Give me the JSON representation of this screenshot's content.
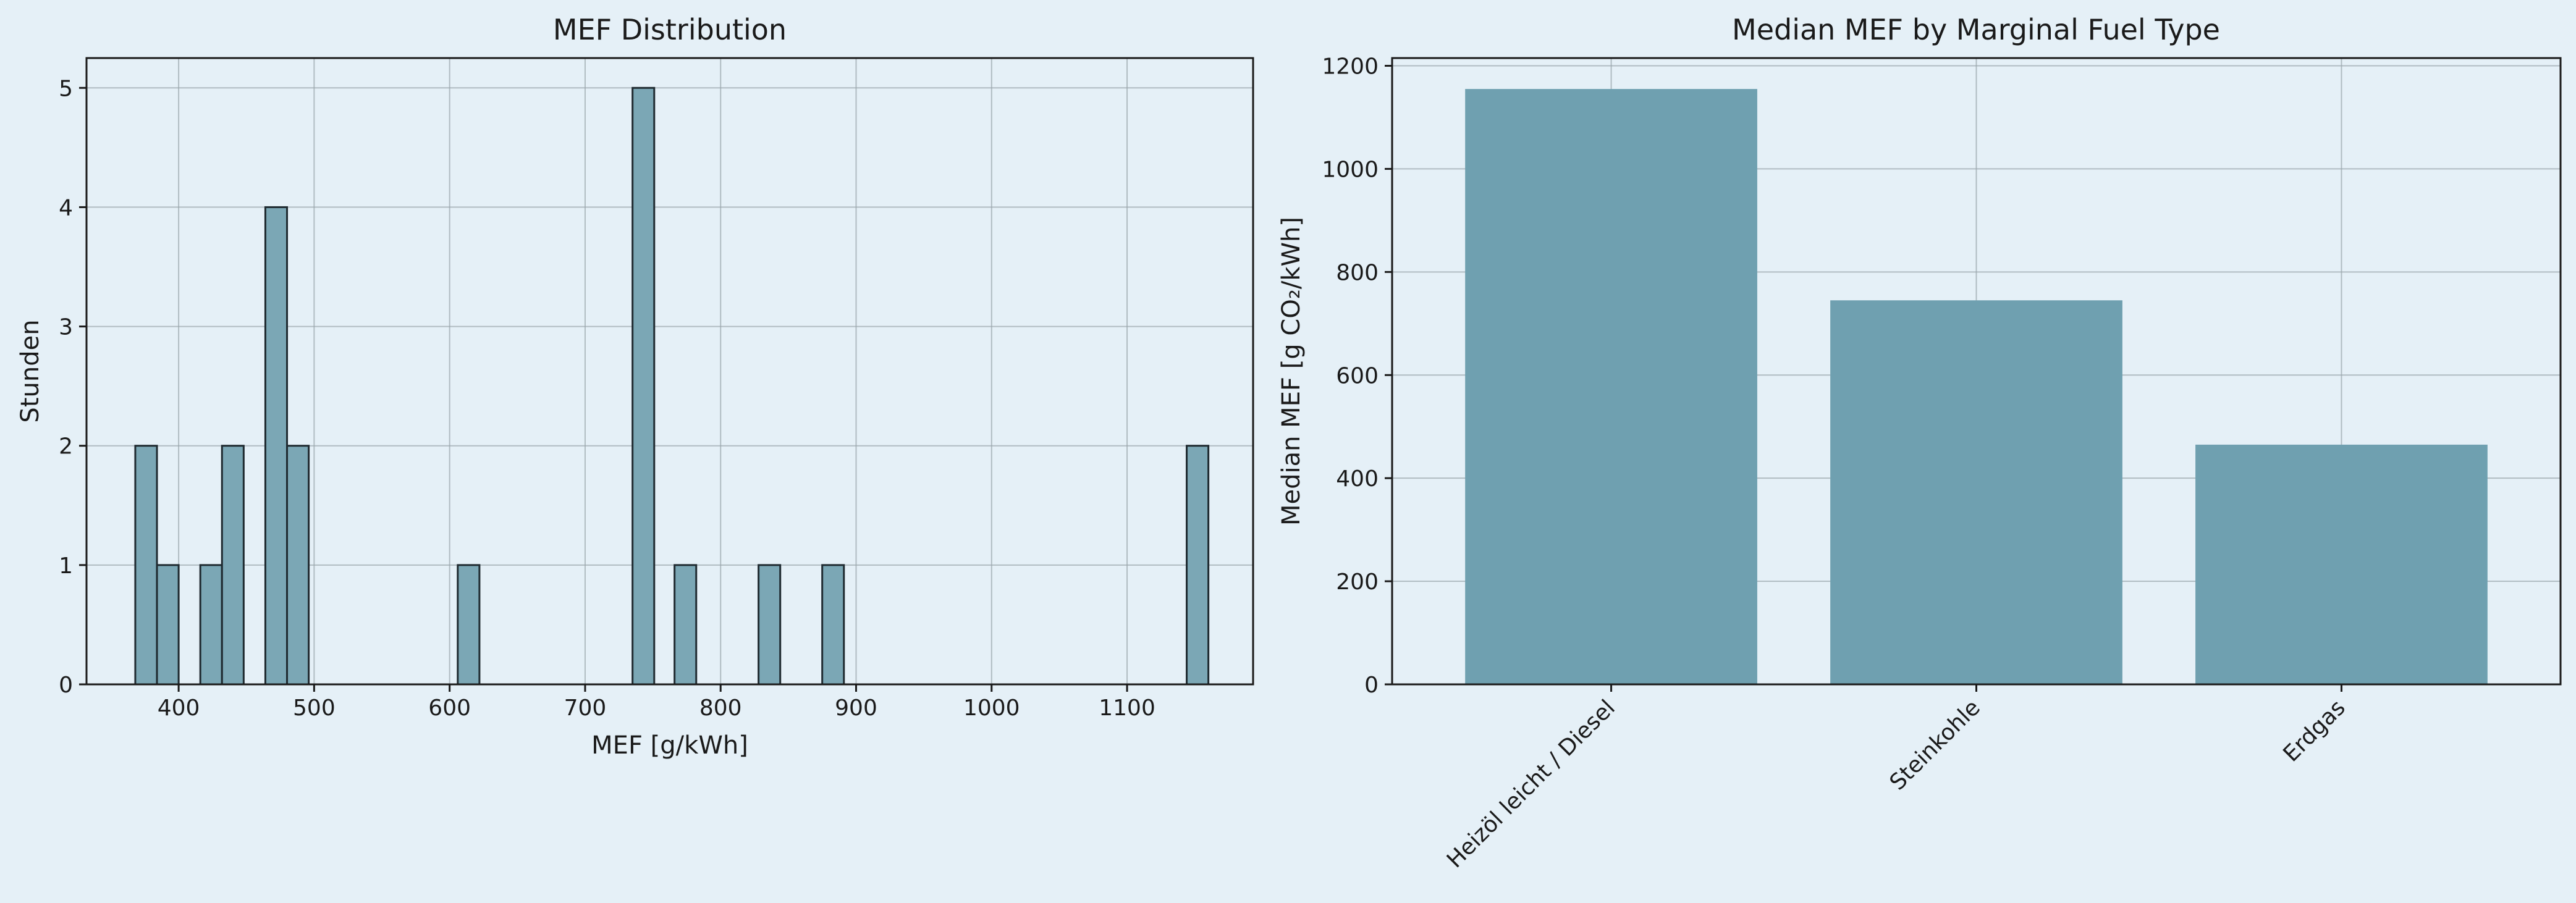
{
  "colors": {
    "background": "#e5f0f7",
    "hist_fill": "#7ba7b5",
    "hist_edge": "#1f2a30",
    "bar_fill": "#6fa0b0",
    "grid": "#9aa5ab",
    "axis": "#1a1a1a"
  },
  "chart_data": [
    {
      "type": "bar",
      "subtype": "histogram",
      "title": "MEF Distribution",
      "xlabel": "MEF [g/kWh]",
      "ylabel": "Stunden",
      "xlim": [
        332,
        1193
      ],
      "ylim": [
        0,
        5.25
      ],
      "xticks": [
        400,
        500,
        600,
        700,
        800,
        900,
        1000,
        1100
      ],
      "yticks": [
        0,
        1,
        2,
        3,
        4,
        5
      ],
      "grid": true,
      "bins": [
        {
          "x0": 368,
          "x1": 384,
          "count": 2
        },
        {
          "x0": 384,
          "x1": 400,
          "count": 1
        },
        {
          "x0": 416,
          "x1": 432,
          "count": 1
        },
        {
          "x0": 432,
          "x1": 448,
          "count": 2
        },
        {
          "x0": 464,
          "x1": 480,
          "count": 4
        },
        {
          "x0": 480,
          "x1": 496,
          "count": 2
        },
        {
          "x0": 606,
          "x1": 622,
          "count": 1
        },
        {
          "x0": 735,
          "x1": 751,
          "count": 5
        },
        {
          "x0": 766,
          "x1": 782,
          "count": 1
        },
        {
          "x0": 828,
          "x1": 844,
          "count": 1
        },
        {
          "x0": 875,
          "x1": 891,
          "count": 1
        },
        {
          "x0": 1144,
          "x1": 1160,
          "count": 2
        }
      ]
    },
    {
      "type": "bar",
      "title": "Median MEF by Marginal Fuel Type",
      "xlabel": "",
      "ylabel": "Median MEF [g CO₂/kWh]",
      "categories": [
        "Heizöl leicht / Diesel",
        "Steinkohle",
        "Erdgas"
      ],
      "values": [
        1155,
        745,
        465
      ],
      "ylim": [
        0,
        1215
      ],
      "yticks": [
        0,
        200,
        400,
        600,
        800,
        1000,
        1200
      ],
      "grid": true
    }
  ]
}
